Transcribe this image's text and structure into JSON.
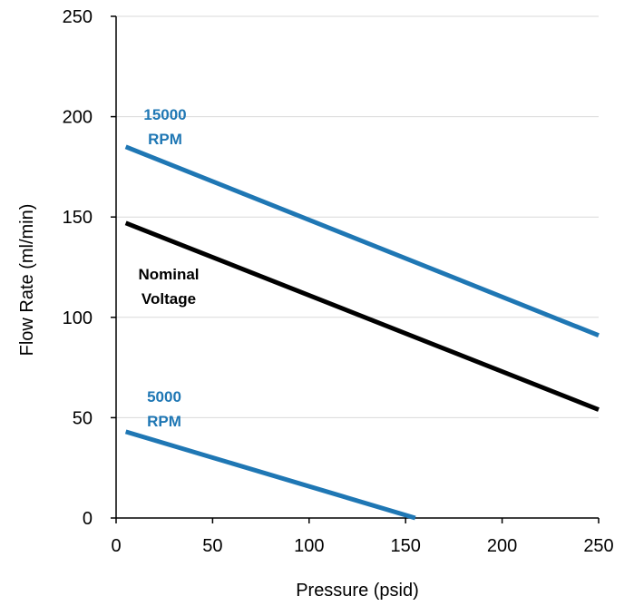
{
  "chart_data": {
    "type": "line",
    "xlabel": "Pressure (psid)",
    "ylabel": "Flow Rate (ml/min)",
    "xlim": [
      0,
      250
    ],
    "ylim": [
      0,
      250
    ],
    "x_ticks": [
      0,
      50,
      100,
      150,
      200,
      250
    ],
    "y_ticks": [
      0,
      50,
      100,
      150,
      200,
      250
    ],
    "grid": "horizontal",
    "series": [
      {
        "name_lines": [
          "15000",
          "RPM"
        ],
        "color": "#1f77b4",
        "x": [
          5,
          250
        ],
        "y": [
          185,
          91
        ]
      },
      {
        "name_lines": [
          "Nominal",
          "Voltage"
        ],
        "color": "#000000",
        "x": [
          5,
          250
        ],
        "y": [
          147,
          54
        ]
      },
      {
        "name_lines": [
          "5000",
          "RPM"
        ],
        "color": "#1f77b4",
        "x": [
          5,
          155
        ],
        "y": [
          43,
          0
        ]
      }
    ]
  }
}
